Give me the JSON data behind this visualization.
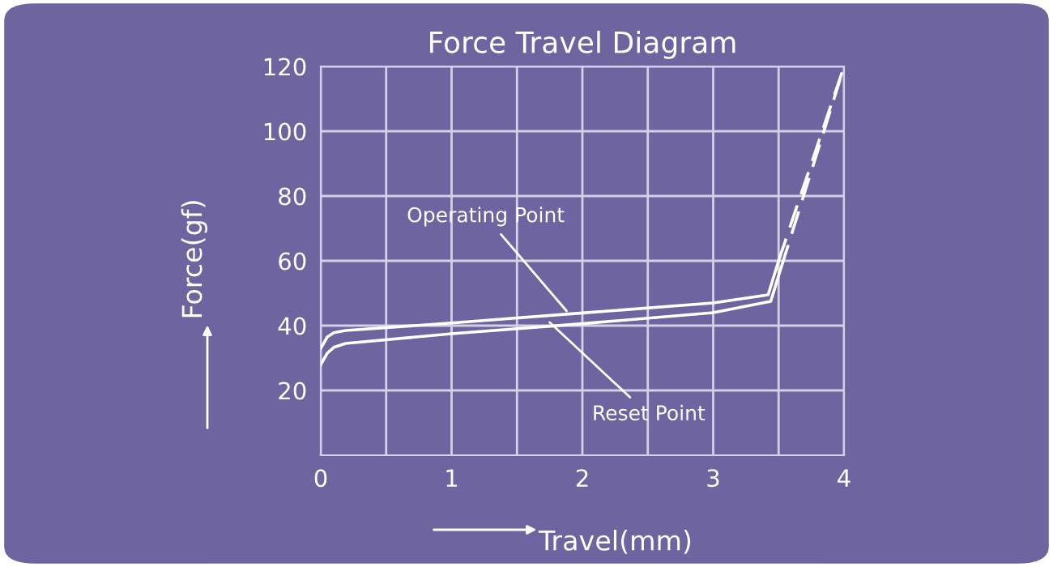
{
  "chart_data": {
    "type": "line",
    "title": "Force Travel Diagram",
    "xlabel": "Travel(mm)",
    "ylabel": "Force(gf)",
    "xlim": [
      0,
      4
    ],
    "ylim": [
      0,
      120
    ],
    "xticks": [
      0,
      {
        "value": 0.5,
        "label": null
      },
      1,
      {
        "value": 1.5,
        "label": null
      },
      2,
      {
        "value": 2.5,
        "label": null
      },
      3,
      {
        "value": 3.5,
        "label": null
      },
      4
    ],
    "yticks": [
      20,
      40,
      60,
      80,
      100,
      120
    ],
    "grid": true,
    "marker": "none",
    "series": [
      {
        "color": "#ffffff",
        "line_style": "solid",
        "x": [
          0,
          0.05,
          0.1,
          0.19,
          1,
          2,
          3,
          3.42,
          3.5
        ],
        "values": [
          33,
          36.5,
          37.8,
          38.5,
          40.8,
          43.9,
          47,
          49.5,
          60
        ]
      },
      {
        "color": "#ffffff",
        "line_style": "dashed",
        "x": [
          3.5,
          4.0
        ],
        "values": [
          60,
          120
        ]
      },
      {
        "color": "#ffffff",
        "line_style": "solid",
        "x": [
          0,
          0.05,
          0.1,
          0.19,
          1,
          2,
          3,
          3.44,
          3.52
        ],
        "values": [
          28,
          31.5,
          33.3,
          34.5,
          37.5,
          40.6,
          44,
          47.5,
          58
        ]
      },
      {
        "color": "#ffffff",
        "line_style": "dashed",
        "x": [
          3.52,
          3.97
        ],
        "values": [
          58,
          116
        ]
      }
    ],
    "annotations": [
      {
        "text": "Operating Point",
        "x": 1.88,
        "y": 44.5
      },
      {
        "text": "Reset Point",
        "x": 1.75,
        "y": 41
      }
    ]
  }
}
